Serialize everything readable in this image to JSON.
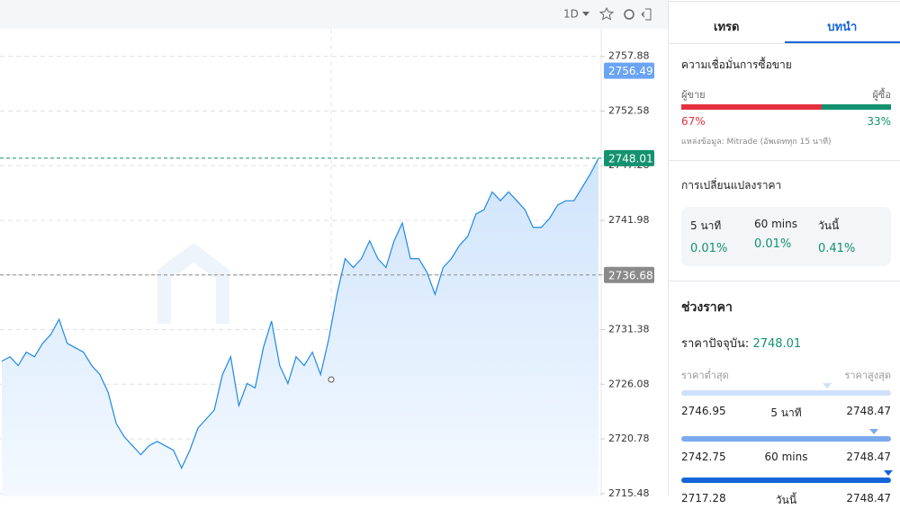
{
  "toolbar": {
    "interval": "1D"
  },
  "chart_data": {
    "type": "line",
    "series": [
      {
        "name": null,
        "color": "#1e88e5",
        "values": [
          2728.32,
          2728.75,
          2727.89,
          2729.19,
          2728.75,
          2730.05,
          2730.91,
          2732.38,
          2730.05,
          2729.62,
          2729.19,
          2727.89,
          2727.02,
          2725.3,
          2722.27,
          2720.97,
          2720.11,
          2719.25,
          2720.11,
          2720.54,
          2720.11,
          2719.68,
          2717.95,
          2719.68,
          2721.84,
          2722.7,
          2723.57,
          2727.02,
          2728.75,
          2724.0,
          2726.16,
          2725.73,
          2729.62,
          2732.21,
          2727.89,
          2726.16,
          2728.75,
          2727.89,
          2729.19,
          2727.02,
          2730.48,
          2734.8,
          2738.26,
          2737.4,
          2738.26,
          2739.99,
          2738.26,
          2737.4,
          2739.99,
          2741.72,
          2738.26,
          2738.26,
          2736.96,
          2734.8,
          2737.4,
          2738.26,
          2739.56,
          2740.42,
          2742.58,
          2743.01,
          2744.74,
          2743.88,
          2744.74,
          2743.88,
          2743.01,
          2741.29,
          2741.29,
          2742.15,
          2743.45,
          2743.88,
          2743.88,
          2745.17,
          2746.47,
          2748.01
        ]
      }
    ],
    "ylim": [
      2715.2,
      2760.56
    ],
    "yticks": [
      2757.88,
      2752.58,
      2747.28,
      2741.98,
      2736.68,
      2731.38,
      2726.08,
      2720.78,
      2715.48
    ],
    "grid": true,
    "price_tags": [
      {
        "value": 2756.49,
        "color": "#6aa4f5",
        "dashed": false
      },
      {
        "value": 2748.01,
        "color": "#13926f",
        "dashed": true
      },
      {
        "value": 2736.68,
        "color": "#8a8a8a",
        "dashed": true
      }
    ]
  },
  "panel": {
    "tabs": [
      "เทรด",
      "บทนำ"
    ],
    "sentiment": {
      "title": "ความเชื่อมั่นการซื้อขาย",
      "sell_label": "ผู้ขาย",
      "buy_label": "ผู้ซื้อ",
      "sell": {
        "value": 67,
        "label": "67%"
      },
      "buy": {
        "value": 33,
        "label": "33%"
      },
      "source": "แหล่งข้อมูล: Mitrade (อัพเดททุก 15 นาที)"
    },
    "change": {
      "title": "การเปลี่ยนแปลงราคา",
      "items": [
        {
          "period": "5 นาที",
          "value": "0.01%"
        },
        {
          "period": "60 mins",
          "value": "0.01%"
        },
        {
          "period": "วันนี้",
          "value": "0.41%"
        }
      ]
    },
    "range": {
      "title": "ช่วงราคา",
      "current_label": "ราคาปัจจุบัน:",
      "current": 2748.01,
      "low_label": "ราคาต่ำสุด",
      "high_label": "ราคาสูงสุด",
      "rows": [
        {
          "low": 2746.95,
          "period": "5 นาที",
          "high": 2748.47,
          "color": "#cfe0fb"
        },
        {
          "low": 2742.75,
          "period": "60 mins",
          "high": 2748.47,
          "color": "#7aa9ee"
        },
        {
          "low": 2717.28,
          "period": "วันนี้",
          "high": 2748.47,
          "color": "#1565d8"
        }
      ]
    }
  }
}
